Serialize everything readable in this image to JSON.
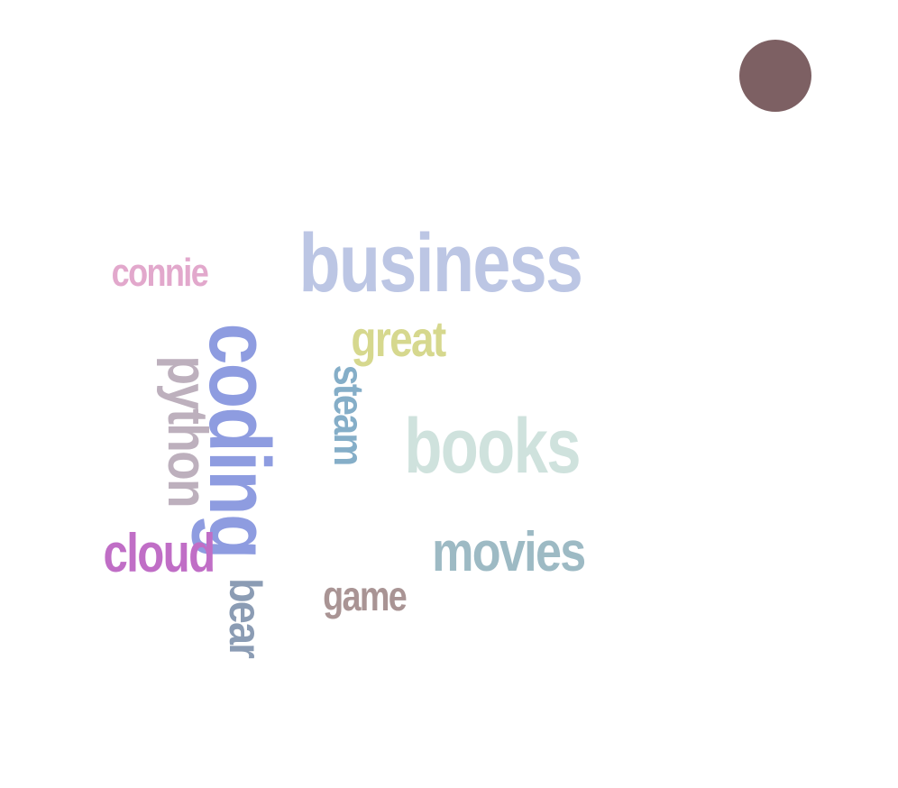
{
  "words": [
    {
      "id": "business",
      "text": "business",
      "color": "#bcc6e4"
    },
    {
      "id": "coding",
      "text": "coding",
      "color": "#8e9ce0"
    },
    {
      "id": "books",
      "text": "books",
      "color": "#cfe2dd"
    },
    {
      "id": "movies",
      "text": "movies",
      "color": "#9dbac4"
    },
    {
      "id": "python",
      "text": "python",
      "color": "#bdb0bd"
    },
    {
      "id": "connie",
      "text": "connie",
      "color": "#e2a8cc"
    },
    {
      "id": "great",
      "text": "great",
      "color": "#d6d88e"
    },
    {
      "id": "steam",
      "text": "steam",
      "color": "#85aec8"
    },
    {
      "id": "cloud",
      "text": "cloud",
      "color": "#c06ec6"
    },
    {
      "id": "bear",
      "text": "bear",
      "color": "#8b9cb4"
    },
    {
      "id": "game",
      "text": "game",
      "color": "#a99494"
    }
  ],
  "dot": {
    "color": "#7d6063"
  }
}
